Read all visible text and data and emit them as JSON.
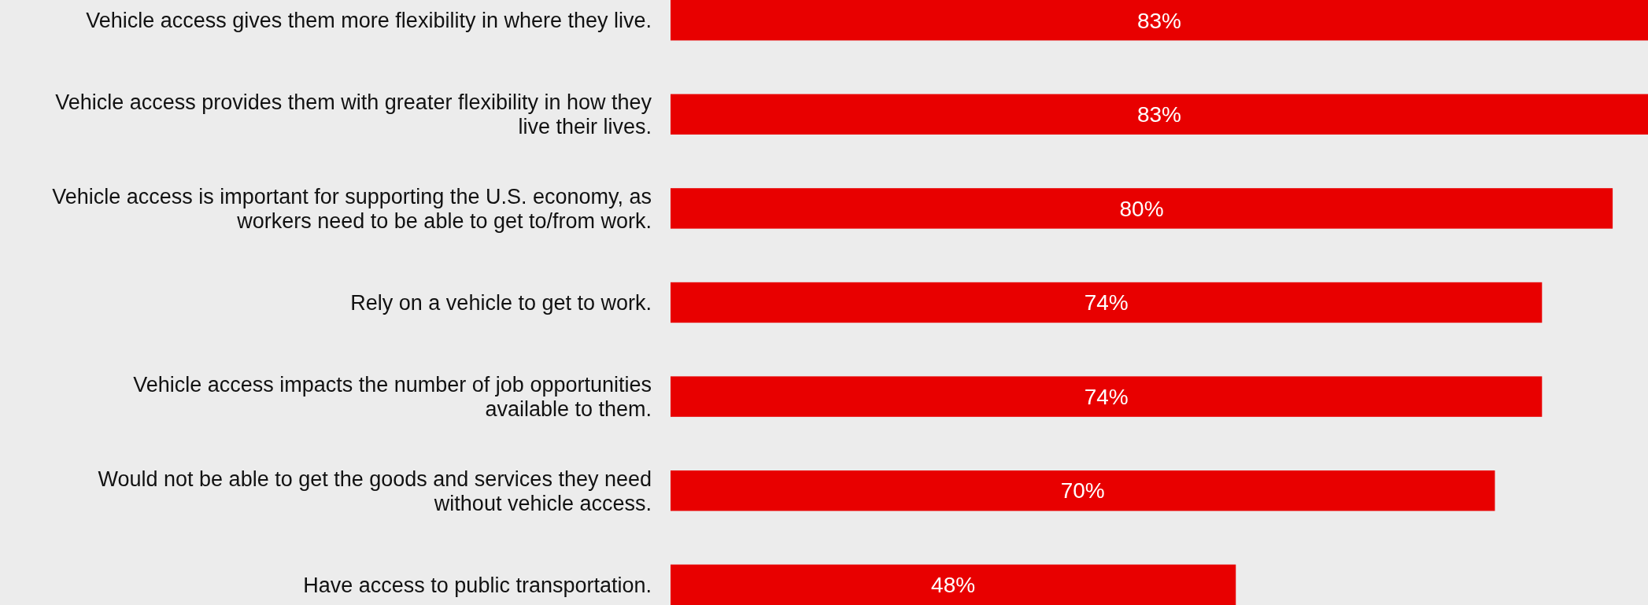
{
  "chart_data": {
    "type": "bar",
    "orientation": "horizontal",
    "data_labels": true,
    "categories": [
      "Vehicle access gives them more flexibility in where they live.",
      "Vehicle access provides them with greater flexibility in how they live their lives.",
      "Vehicle access is important for supporting the U.S. economy, as workers need to be able to get to/from work.",
      "Rely on a vehicle to get to work.",
      "Vehicle access impacts the number of job opportunities available to them.",
      "Would not be able to get the goods and services they need without vehicle access.",
      "Have access to public transportation."
    ],
    "values": [
      83,
      83,
      80,
      74,
      74,
      70,
      48
    ],
    "value_labels": [
      "83%",
      "83%",
      "80%",
      "74%",
      "74%",
      "70%",
      "48%"
    ],
    "color": "#e80000"
  }
}
